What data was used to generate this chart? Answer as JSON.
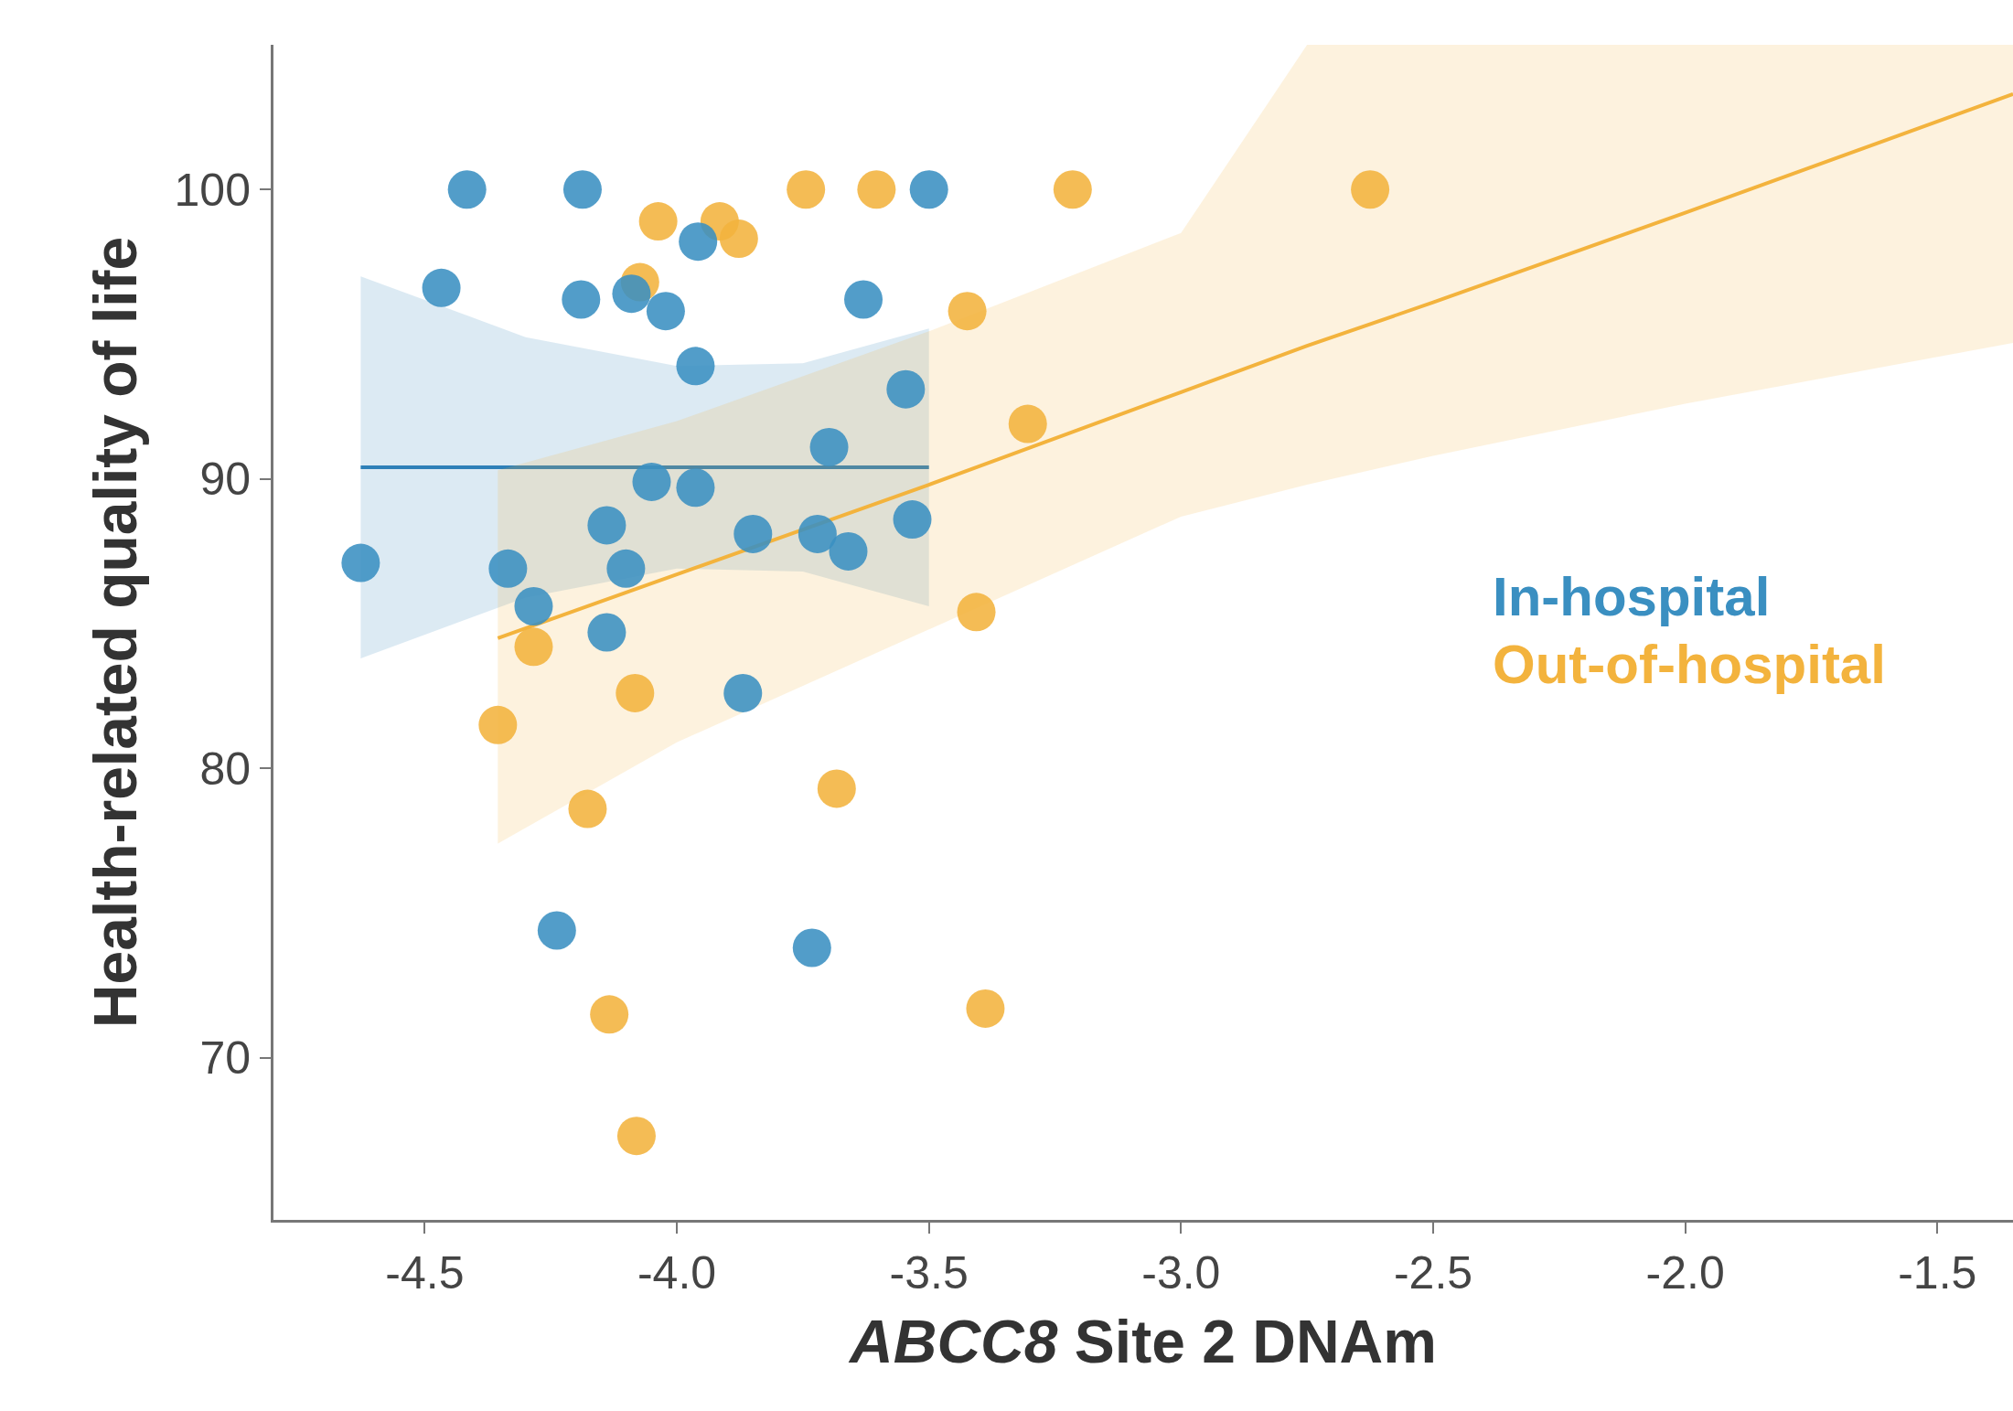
{
  "chart_data": {
    "type": "scatter",
    "xlabel": "ABCC8 Site 2 DNAm",
    "ylabel": "Health-related quality of life",
    "xlim": [
      -4.8,
      -1.35
    ],
    "ylim": [
      64.4,
      105
    ],
    "xticks": [
      {
        "value": -4.5,
        "label": "-4.5"
      },
      {
        "value": -4,
        "label": "-4.0"
      },
      {
        "value": -3.5,
        "label": "-3.5"
      },
      {
        "value": -3,
        "label": "-3.0"
      },
      {
        "value": -2.5,
        "label": "-2.5"
      },
      {
        "value": -2,
        "label": "-2.0"
      },
      {
        "value": -1.5,
        "label": "-1.5"
      }
    ],
    "yticks": [
      70,
      80,
      90,
      100
    ],
    "series": [
      {
        "name": "In-hospital",
        "color": "#3a8fc1",
        "marker": "circle",
        "x": [
          -4.627,
          -4.416,
          -4.467,
          -4.187,
          -4.19,
          -4.09,
          -4.022,
          -3.958,
          -3.963,
          -4.335,
          -4.284,
          -4.139,
          -4.101,
          -4.139,
          -4.05,
          -3.963,
          -3.849,
          -3.721,
          -3.698,
          -3.66,
          -3.546,
          -3.533,
          -3.63,
          -3.5,
          -3.869,
          -4.238,
          -3.732
        ],
        "values": [
          87.1,
          100,
          96.6,
          100,
          96.2,
          96.4,
          95.8,
          98.2,
          93.9,
          86.9,
          85.6,
          88.4,
          86.9,
          84.7,
          89.9,
          89.7,
          88.1,
          88.1,
          91.1,
          87.5,
          93.1,
          88.6,
          96.2,
          100,
          82.6,
          74.4,
          73.8
        ]
      },
      {
        "name": "Out-of-hospital",
        "color": "#f3b33d",
        "marker": "circle",
        "x": [
          -4.355,
          -4.284,
          -4.073,
          -4.037,
          -3.915,
          -3.877,
          -3.744,
          -3.604,
          -3.215,
          -2.625,
          -3.424,
          -3.304,
          -3.406,
          -4.083,
          -4.177,
          -3.683,
          -4.134,
          -4.08,
          -3.388
        ],
        "values": [
          81.5,
          84.2,
          96.8,
          98.9,
          98.9,
          98.3,
          100,
          100,
          100,
          100,
          95.8,
          91.9,
          85.4,
          82.6,
          78.6,
          79.3,
          71.5,
          67.3,
          71.7
        ]
      },
      {
        "color": "#2e80b8",
        "type": "line",
        "marker": "none",
        "x": [
          -4.627,
          -4.3,
          -4.0,
          -3.75,
          -3.5
        ],
        "values": [
          90.4,
          90.4,
          90.4,
          90.4,
          90.4
        ],
        "lower": [
          83.8,
          85.9,
          86.9,
          86.8,
          85.6
        ],
        "upper": [
          97.0,
          94.9,
          93.9,
          94.0,
          95.2
        ]
      },
      {
        "color": "#f3b33d",
        "type": "line",
        "marker": "none",
        "x": [
          -4.355,
          -4.0,
          -3.5,
          -3.0,
          -2.75,
          -2.5,
          -2.0,
          -1.35
        ],
        "values": [
          84.5,
          86.7,
          89.8,
          93.0,
          94.6,
          96.1,
          99.2,
          103.3
        ],
        "lower": [
          77.4,
          80.9,
          84.8,
          88.7,
          89.8,
          90.8,
          92.6,
          94.7
        ],
        "upper": [
          90.3,
          92.0,
          95.1,
          98.5,
          105,
          105,
          105,
          105
        ]
      }
    ]
  }
}
